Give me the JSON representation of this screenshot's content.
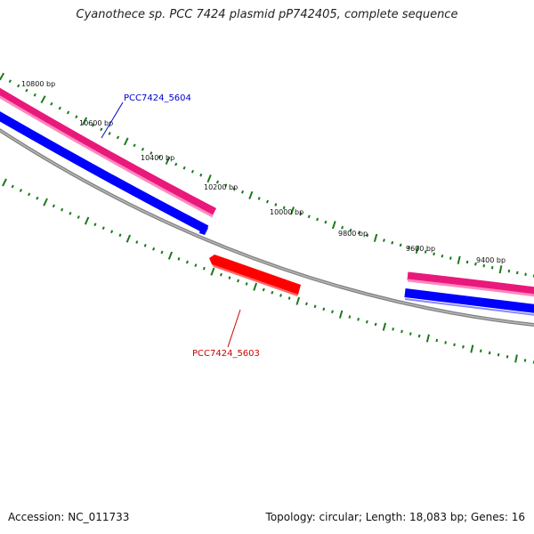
{
  "title": "Cyanothece sp. PCC 7424 plasmid pP742405, complete sequence",
  "footer": {
    "accession": "Accession: NC_011733",
    "summary": "Topology: circular; Length: 18,083 bp; Genes: 16"
  },
  "map": {
    "bp_labels": [
      "10800 bp",
      "10600 bp",
      "10400 bp",
      "10200 bp",
      "10000 bp",
      "9800 bp",
      "9600 bp",
      "9400 bp"
    ],
    "genes": [
      {
        "name": "PCC7424_5604",
        "color": "#0000cc"
      },
      {
        "name": "PCC7424_5603",
        "color": "#cc0000"
      }
    ],
    "colors": {
      "backbone": "#808080",
      "tick": "#1a7a1a",
      "forward_track": "#e8197a",
      "reverse_track": "#0000ff",
      "gene_reverse": "#ff0000"
    }
  }
}
